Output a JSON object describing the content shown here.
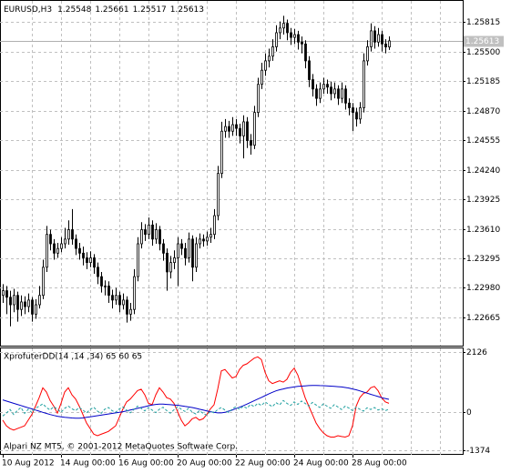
{
  "chart_data": [
    {
      "type": "candlestick",
      "title": "EURUSD,H3",
      "categories": [
        "10 Aug 2012",
        null,
        null,
        null,
        null,
        null,
        null,
        null,
        null,
        null,
        null,
        null,
        null,
        null,
        null,
        null,
        "14 Aug 00:00",
        null,
        null,
        null,
        null,
        null,
        null,
        null,
        null,
        null,
        null,
        null,
        null,
        null,
        null,
        null,
        "16 Aug 00:00",
        null,
        null,
        null,
        null,
        null,
        null,
        null,
        null,
        null,
        null,
        null,
        null,
        null,
        null,
        null,
        "20 Aug 00:00",
        null,
        null,
        null,
        null,
        null,
        null,
        null,
        null,
        null,
        null,
        null,
        null,
        null,
        null,
        null,
        "22 Aug 00:00",
        null,
        null,
        null,
        null,
        null,
        null,
        null,
        null,
        null,
        null,
        null,
        null,
        null,
        null,
        null,
        "24 Aug 00:00",
        null,
        null,
        null,
        null,
        null,
        null,
        null,
        null,
        null,
        null,
        null,
        null,
        null,
        null,
        null,
        "28 Aug 00:00",
        null,
        null,
        null,
        null,
        null,
        null,
        null,
        null,
        null,
        null
      ],
      "open": [
        1.229,
        1.2295,
        1.2288,
        1.228,
        1.229,
        1.2275,
        1.2283,
        1.2278,
        1.2285,
        1.227,
        1.228,
        1.229,
        1.232,
        1.2355,
        1.2345,
        1.2335,
        1.234,
        1.2345,
        1.235,
        1.236,
        1.235,
        1.234,
        1.2335,
        1.233,
        1.2325,
        1.233,
        1.232,
        1.231,
        1.23,
        1.23,
        1.229,
        1.2285,
        1.229,
        1.228,
        1.2285,
        1.227,
        1.2275,
        1.231,
        1.2345,
        1.236,
        1.2355,
        1.2365,
        1.235,
        1.236,
        1.2345,
        1.2335,
        1.2315,
        1.2325,
        1.233,
        1.2345,
        1.234,
        1.233,
        1.235,
        1.232,
        1.2345,
        1.235,
        1.2348,
        1.2352,
        1.2355,
        1.2375,
        1.242,
        1.2465,
        1.247,
        1.2465,
        1.2472,
        1.2468,
        1.246,
        1.2475,
        1.2455,
        1.245,
        1.2485,
        1.2515,
        1.253,
        1.254,
        1.2545,
        1.2555,
        1.257,
        1.2575,
        1.258,
        1.257,
        1.2565,
        1.2568,
        1.256,
        1.2558,
        1.254,
        1.252,
        1.251,
        1.25,
        1.251,
        1.2515,
        1.2512,
        1.2505,
        1.251,
        1.25,
        1.251,
        1.2495,
        1.249,
        1.2485,
        1.2478,
        1.249,
        1.254,
        1.2555,
        1.2572,
        1.256,
        1.2568,
        1.2558,
        1.25548
      ],
      "high": [
        1.2302,
        1.23,
        1.2295,
        1.2297,
        1.2294,
        1.229,
        1.2289,
        1.2292,
        1.2288,
        1.2286,
        1.23,
        1.2328,
        1.2364,
        1.236,
        1.235,
        1.2346,
        1.2352,
        1.2362,
        1.237,
        1.2382,
        1.2355,
        1.2346,
        1.2342,
        1.2336,
        1.2337,
        1.2334,
        1.2325,
        1.2315,
        1.2306,
        1.2305,
        1.2296,
        1.2298,
        1.2294,
        1.2292,
        1.2289,
        1.2282,
        1.2318,
        1.2352,
        1.2368,
        1.2366,
        1.2373,
        1.237,
        1.2367,
        1.2364,
        1.235,
        1.234,
        1.2332,
        1.2338,
        1.2352,
        1.235,
        1.2346,
        1.2357,
        1.2354,
        1.2352,
        1.2356,
        1.2355,
        1.2358,
        1.2362,
        1.2382,
        1.2428,
        1.2475,
        1.2478,
        1.2476,
        1.248,
        1.2478,
        1.2473,
        1.2482,
        1.248,
        1.2462,
        1.2492,
        1.2522,
        1.2538,
        1.2548,
        1.2553,
        1.2563,
        1.2578,
        1.2582,
        1.2588,
        1.2584,
        1.2575,
        1.2574,
        1.2572,
        1.2566,
        1.2562,
        1.2545,
        1.2526,
        1.2515,
        1.2517,
        1.2522,
        1.252,
        1.2518,
        1.2517,
        1.2514,
        1.2517,
        1.2514,
        1.25,
        1.2495,
        1.249,
        1.2496,
        1.2548,
        1.2562,
        1.258,
        1.2577,
        1.2575,
        1.2572,
        1.2563,
        1.25661
      ],
      "low": [
        1.2282,
        1.227,
        1.2257,
        1.2272,
        1.2262,
        1.2268,
        1.227,
        1.2272,
        1.2262,
        1.2265,
        1.2276,
        1.2286,
        1.2315,
        1.2338,
        1.2328,
        1.233,
        1.2336,
        1.234,
        1.2344,
        1.2344,
        1.2333,
        1.2328,
        1.2322,
        1.2318,
        1.232,
        1.2313,
        1.2302,
        1.2293,
        1.229,
        1.2282,
        1.2276,
        1.228,
        1.2272,
        1.2275,
        1.2261,
        1.2263,
        1.227,
        1.2305,
        1.234,
        1.2348,
        1.235,
        1.2343,
        1.2345,
        1.2338,
        1.2327,
        1.2295,
        1.2308,
        1.2318,
        1.23,
        1.2333,
        1.2322,
        1.2325,
        1.2305,
        1.2315,
        1.234,
        1.2342,
        1.2343,
        1.2346,
        1.235,
        1.237,
        1.2415,
        1.2458,
        1.2458,
        1.246,
        1.246,
        1.2452,
        1.2436,
        1.2447,
        1.244,
        1.2446,
        1.248,
        1.251,
        1.2524,
        1.2533,
        1.254,
        1.255,
        1.2563,
        1.2568,
        1.2562,
        1.2557,
        1.2558,
        1.2552,
        1.2548,
        1.2532,
        1.2512,
        1.2502,
        1.2492,
        1.2495,
        1.2505,
        1.2505,
        1.2498,
        1.25,
        1.2493,
        1.2495,
        1.2488,
        1.2482,
        1.2465,
        1.247,
        1.2473,
        1.2485,
        1.2535,
        1.255,
        1.2553,
        1.2555,
        1.255,
        1.2548,
        1.25517
      ],
      "close": [
        1.2295,
        1.2288,
        1.228,
        1.229,
        1.2275,
        1.2283,
        1.2278,
        1.2285,
        1.227,
        1.228,
        1.229,
        1.232,
        1.2355,
        1.2345,
        1.2335,
        1.234,
        1.2345,
        1.235,
        1.236,
        1.235,
        1.234,
        1.2335,
        1.233,
        1.2325,
        1.233,
        1.232,
        1.231,
        1.23,
        1.23,
        1.229,
        1.2285,
        1.229,
        1.228,
        1.2285,
        1.227,
        1.2275,
        1.231,
        1.2345,
        1.236,
        1.2355,
        1.2365,
        1.235,
        1.236,
        1.2345,
        1.2335,
        1.2315,
        1.2325,
        1.233,
        1.2345,
        1.234,
        1.233,
        1.235,
        1.232,
        1.2345,
        1.235,
        1.2348,
        1.2352,
        1.2355,
        1.2375,
        1.242,
        1.2465,
        1.247,
        1.2465,
        1.2472,
        1.2468,
        1.246,
        1.2475,
        1.2455,
        1.245,
        1.2485,
        1.2515,
        1.253,
        1.254,
        1.2545,
        1.2555,
        1.257,
        1.2575,
        1.258,
        1.257,
        1.2565,
        1.2568,
        1.256,
        1.2558,
        1.254,
        1.252,
        1.251,
        1.25,
        1.251,
        1.2515,
        1.2512,
        1.2505,
        1.251,
        1.25,
        1.251,
        1.2495,
        1.249,
        1.2485,
        1.2478,
        1.249,
        1.254,
        1.2555,
        1.2572,
        1.256,
        1.2568,
        1.2558,
        1.25548,
        1.25613
      ],
      "color": "#000000",
      "ylim": [
        1.22364,
        1.26039
      ],
      "yticks": [
        1.25815,
        {
          "value": 1.255,
          "label": "1.25500"
        },
        1.25185,
        {
          "value": 1.2487,
          "label": "1.24870"
        },
        1.24555,
        {
          "value": 1.2424,
          "label": "1.24240"
        },
        1.23925,
        {
          "value": 1.2361,
          "label": "1.23610"
        },
        1.23295,
        {
          "value": 1.2298,
          "label": "1.22980"
        },
        1.22665
      ],
      "grid": true
    },
    {
      "type": "line",
      "title": "XprofuterDD(14 ,14 ,34) 65 60 65",
      "annotation": "Alpari NZ MT5, © 2001-2012 MetaQuotes Software Corp.",
      "series": [
        {
          "color": "#ff0000",
          "values": [
            -300,
            -500,
            -600,
            -650,
            -600,
            -550,
            -500,
            -300,
            -100,
            200,
            500,
            850,
            700,
            400,
            200,
            -50,
            300,
            700,
            850,
            600,
            450,
            200,
            -100,
            -400,
            -600,
            -800,
            -850,
            -800,
            -750,
            -700,
            -600,
            -500,
            -200,
            100,
            350,
            450,
            600,
            750,
            800,
            600,
            300,
            250,
            600,
            850,
            700,
            500,
            450,
            300,
            0,
            -300,
            -500,
            -400,
            -250,
            -200,
            -300,
            -250,
            -100,
            100,
            250,
            800,
            1450,
            1500,
            1350,
            1200,
            1250,
            1500,
            1650,
            1700,
            1800,
            1900,
            1950,
            1850,
            1400,
            1100,
            1000,
            1050,
            1100,
            1050,
            1150,
            1400,
            1550,
            1300,
            900,
            500,
            200,
            -100,
            -400,
            -600,
            -750,
            -850,
            -900,
            -900,
            -850,
            -880,
            -900,
            -850,
            -500,
            200,
            500,
            650,
            700,
            850,
            900,
            750,
            500,
            350,
            300
          ]
        },
        {
          "color": "#0000c8",
          "values": [
            420,
            380,
            340,
            300,
            260,
            220,
            180,
            140,
            100,
            60,
            20,
            -20,
            -60,
            -100,
            -130,
            -160,
            -180,
            -200,
            -210,
            -220,
            -230,
            -230,
            -220,
            -200,
            -180,
            -160,
            -140,
            -120,
            -100,
            -80,
            -60,
            -40,
            -20,
            0,
            30,
            60,
            90,
            120,
            150,
            180,
            210,
            240,
            260,
            270,
            270,
            260,
            250,
            240,
            230,
            210,
            190,
            170,
            150,
            120,
            90,
            60,
            30,
            0,
            -20,
            -40,
            -40,
            -20,
            20,
            60,
            110,
            160,
            210,
            270,
            330,
            390,
            450,
            510,
            570,
            630,
            690,
            740,
            780,
            810,
            840,
            860,
            880,
            900,
            910,
            920,
            930,
            935,
            935,
            930,
            925,
            920,
            910,
            900,
            890,
            880,
            860,
            840,
            810,
            780,
            740,
            700,
            660,
            620,
            580,
            540,
            500,
            470,
            440
          ]
        },
        {
          "color": "#20a0a0",
          "dashed": true,
          "values": [
            -150,
            -50,
            80,
            -100,
            40,
            150,
            -60,
            90,
            -30,
            120,
            200,
            280,
            150,
            60,
            180,
            90,
            -20,
            120,
            200,
            100,
            40,
            150,
            60,
            -40,
            80,
            160,
            20,
            -60,
            90,
            150,
            40,
            -20,
            100,
            170,
            60,
            -40,
            80,
            200,
            120,
            30,
            150,
            60,
            -30,
            90,
            160,
            40,
            -50,
            70,
            180,
            90,
            10,
            120,
            -10,
            -80,
            40,
            -60,
            -120,
            20,
            -40,
            80,
            150,
            60,
            -30,
            100,
            180,
            90,
            200,
            120,
            260,
            180,
            300,
            220,
            350,
            260,
            180,
            320,
            240,
            400,
            300,
            220,
            350,
            260,
            380,
            300,
            200,
            330,
            240,
            150,
            280,
            200,
            120,
            250,
            170,
            80,
            200,
            130,
            40,
            160,
            90,
            20,
            140,
            80,
            150,
            60,
            110,
            40,
            90
          ]
        }
      ],
      "ylim": [
        -1530,
        2250
      ],
      "yticks": [
        2126,
        0,
        -1374
      ],
      "grid": true
    }
  ]
}
